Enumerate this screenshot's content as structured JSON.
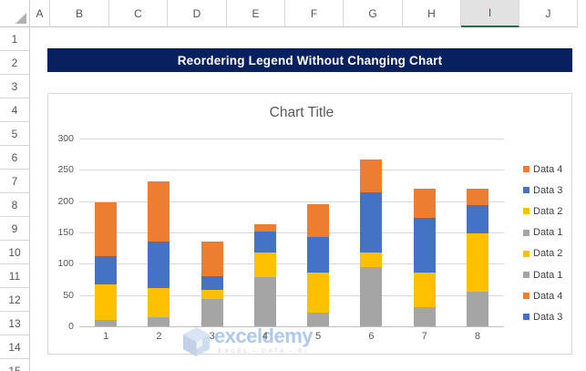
{
  "spreadsheet": {
    "column_headers": [
      "A",
      "B",
      "C",
      "D",
      "E",
      "F",
      "G",
      "H",
      "I",
      "J"
    ],
    "selected_column": "I",
    "row_headers": [
      "1",
      "2",
      "3",
      "4",
      "5",
      "6",
      "7",
      "8",
      "9",
      "10",
      "11",
      "12",
      "13",
      "14",
      "15"
    ]
  },
  "banner": {
    "title": "Reordering Legend Without Changing Chart"
  },
  "chart": {
    "title": "Chart Title",
    "watermark": {
      "brand": "exceldemy",
      "tagline": "EXCEL - DATA - BI"
    },
    "legend": [
      {
        "label": "Data 4",
        "color": "#ED7D31"
      },
      {
        "label": "Data 3",
        "color": "#4472C4"
      },
      {
        "label": "Data 2",
        "color": "#FFC000"
      },
      {
        "label": "Data 1",
        "color": "#A5A5A5"
      },
      {
        "label": "Data 2",
        "color": "#FFC000"
      },
      {
        "label": "Data 1",
        "color": "#A5A5A5"
      },
      {
        "label": "Data 4",
        "color": "#ED7D31"
      },
      {
        "label": "Data 3",
        "color": "#4472C4"
      }
    ]
  },
  "chart_data": {
    "type": "bar",
    "stacked": true,
    "title": "Chart Title",
    "xlabel": "",
    "ylabel": "",
    "categories": [
      "1",
      "2",
      "3",
      "4",
      "5",
      "6",
      "7",
      "8"
    ],
    "series": [
      {
        "name": "Data 1",
        "color": "#A5A5A5",
        "values": [
          10,
          14,
          44,
          78,
          22,
          95,
          30,
          55
        ]
      },
      {
        "name": "Data 2",
        "color": "#FFC000",
        "values": [
          57,
          47,
          14,
          40,
          64,
          23,
          56,
          93
        ]
      },
      {
        "name": "Data 3",
        "color": "#4472C4",
        "values": [
          45,
          75,
          22,
          33,
          56,
          96,
          87,
          46
        ]
      },
      {
        "name": "Data 4",
        "color": "#ED7D31",
        "values": [
          86,
          96,
          55,
          12,
          53,
          53,
          47,
          26
        ]
      }
    ],
    "stack_totals": [
      198,
      232,
      135,
      163,
      195,
      267,
      220,
      220
    ],
    "ylim": [
      0,
      300
    ],
    "yticks": [
      0,
      50,
      100,
      150,
      200,
      250,
      300
    ],
    "grid": true,
    "legend_position": "right"
  },
  "colors": {
    "banner_bg": "#08215E",
    "excel_green": "#217346",
    "axis_text": "#595959",
    "watermark_blue": "#AEC9EB",
    "watermark_gray": "#D2D2D2"
  }
}
